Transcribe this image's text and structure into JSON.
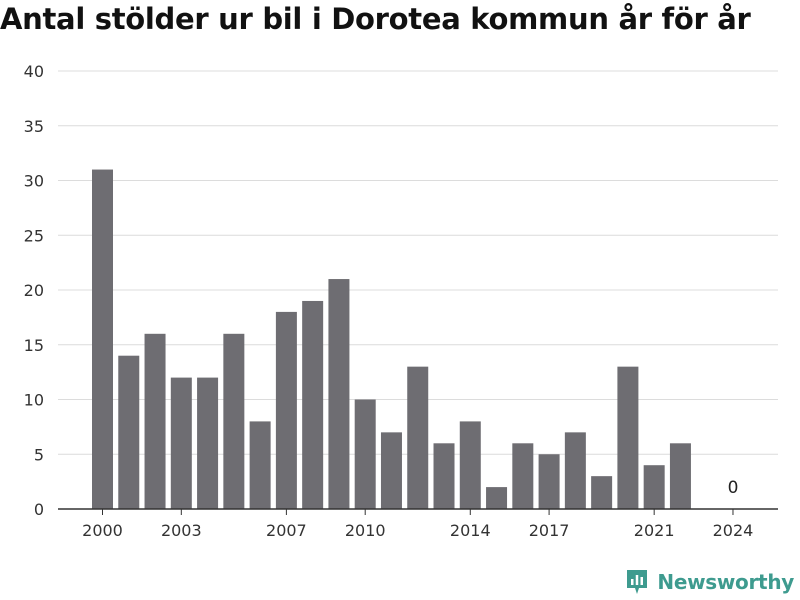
{
  "chart_data": {
    "type": "bar",
    "title": "Antal stölder ur bil i Dorotea kommun år för år",
    "xlabel": "",
    "ylabel": "",
    "categories": [
      "2000",
      "2001",
      "2002",
      "2003",
      "2004",
      "2005",
      "2006",
      "2007",
      "2008",
      "2009",
      "2010",
      "2011",
      "2012",
      "2013",
      "2014",
      "2015",
      "2016",
      "2017",
      "2018",
      "2019",
      "2020",
      "2021",
      "2022",
      "2023",
      "2024"
    ],
    "values": [
      31,
      14,
      16,
      12,
      12,
      16,
      8,
      18,
      19,
      21,
      10,
      7,
      13,
      6,
      8,
      2,
      6,
      5,
      7,
      3,
      13,
      4,
      6,
      null,
      0
    ],
    "x_tick_labels": [
      "2000",
      "2003",
      "2007",
      "2010",
      "2014",
      "2017",
      "2021",
      "2024"
    ],
    "y_ticks": [
      0,
      5,
      10,
      15,
      20,
      25,
      30,
      35,
      40
    ],
    "ylim": [
      0,
      40
    ],
    "grid": true,
    "bar_color": "#6e6d72",
    "annotations": [
      {
        "category": "2024",
        "text": "0"
      }
    ]
  },
  "branding": {
    "name": "Newsworthy",
    "color": "#3e9b8f"
  }
}
